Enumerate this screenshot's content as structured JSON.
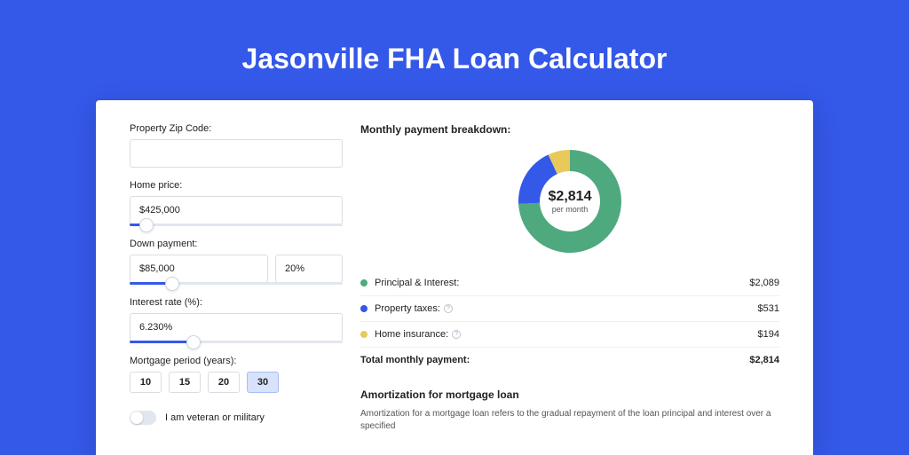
{
  "page": {
    "title": "Jasonville FHA Loan Calculator",
    "background_color": "#3458e8"
  },
  "form": {
    "zip": {
      "label": "Property Zip Code:",
      "value": ""
    },
    "home_price": {
      "label": "Home price:",
      "value": "$425,000",
      "slider_pct": 8
    },
    "down_payment": {
      "label": "Down payment:",
      "amount": "$85,000",
      "pct": "20%",
      "slider_pct": 20
    },
    "interest": {
      "label": "Interest rate (%):",
      "value": "6.230%",
      "slider_pct": 30
    },
    "period": {
      "label": "Mortgage period (years):",
      "options": [
        "10",
        "15",
        "20",
        "30"
      ],
      "selected": "30"
    },
    "veteran": {
      "label": "I am veteran or military",
      "value": false
    }
  },
  "breakdown": {
    "title": "Monthly payment breakdown:",
    "center": {
      "amount": "$2,814",
      "sub": "per month"
    },
    "chart": {
      "type": "donut",
      "inner_radius": 34,
      "outer_radius": 58,
      "background_color": "#ffffff",
      "slices": [
        {
          "label": "Principal & Interest",
          "value": 2089,
          "pct": 74.2,
          "color": "#4fa97f"
        },
        {
          "label": "Property taxes",
          "value": 531,
          "pct": 18.9,
          "color": "#3458e8"
        },
        {
          "label": "Home insurance",
          "value": 194,
          "pct": 6.9,
          "color": "#e8c95a"
        }
      ]
    },
    "legend": [
      {
        "dot": "#4fa97f",
        "label": "Principal & Interest:",
        "info": false,
        "value": "$2,089"
      },
      {
        "dot": "#3458e8",
        "label": "Property taxes:",
        "info": true,
        "value": "$531"
      },
      {
        "dot": "#e8c95a",
        "label": "Home insurance:",
        "info": true,
        "value": "$194"
      }
    ],
    "total": {
      "label": "Total monthly payment:",
      "value": "$2,814"
    }
  },
  "amortization": {
    "title": "Amortization for mortgage loan",
    "text": "Amortization for a mortgage loan refers to the gradual repayment of the loan principal and interest over a specified"
  }
}
